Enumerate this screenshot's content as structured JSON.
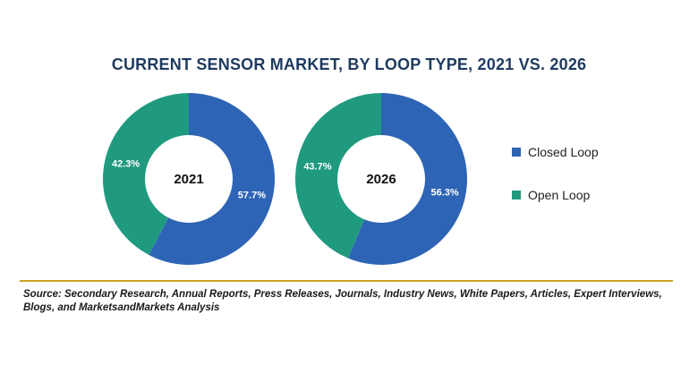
{
  "chart_data": {
    "type": "pie",
    "title": "CURRENT SENSOR MARKET, BY LOOP TYPE, 2021 VS. 2026",
    "legend_position": "right",
    "series_colors": {
      "Closed Loop": "#2e64b5",
      "Open Loop": "#1f9a7f"
    },
    "legend": [
      {
        "name": "Closed Loop",
        "color": "#2e64b5"
      },
      {
        "name": "Open Loop",
        "color": "#1f9a7f"
      }
    ],
    "charts": [
      {
        "center_label": "2021",
        "slices": [
          {
            "name": "Closed Loop",
            "value": 57.7,
            "label": "57.7%"
          },
          {
            "name": "Open Loop",
            "value": 42.3,
            "label": "42.3%"
          }
        ]
      },
      {
        "center_label": "2026",
        "slices": [
          {
            "name": "Closed Loop",
            "value": 56.3,
            "label": "56.3%"
          },
          {
            "name": "Open Loop",
            "value": 43.7,
            "label": "43.7%"
          }
        ]
      }
    ]
  },
  "source_text": "Source: Secondary Research, Annual Reports, Press Releases, Journals, Industry News, White Papers, Articles, Expert Interviews, Blogs, and MarketsandMarkets Analysis"
}
